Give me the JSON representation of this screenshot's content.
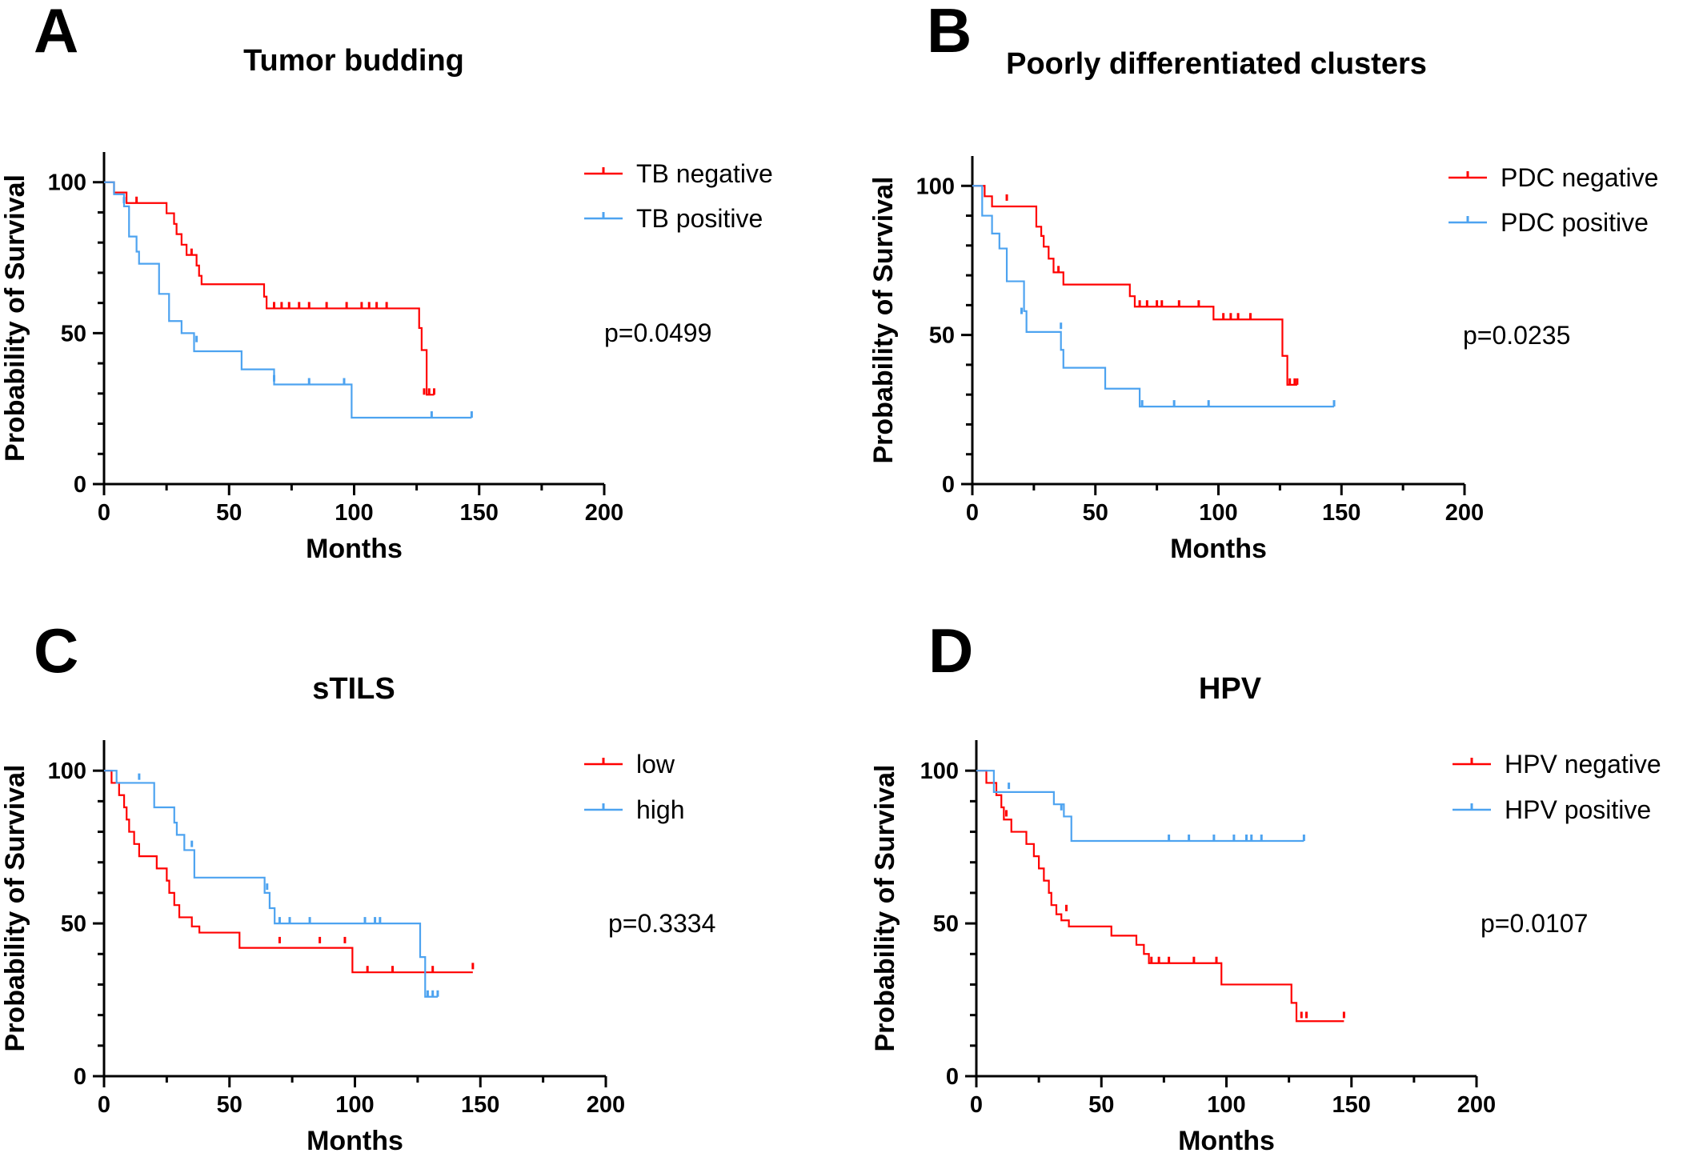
{
  "colors": {
    "red": "#ff0000",
    "blue": "#4da3f0",
    "axis": "#000000"
  },
  "chart_data": [
    {
      "panel": "A",
      "type": "line",
      "step": true,
      "title": "Tumor budding",
      "xlabel": "Months",
      "ylabel": "Probability of Survival",
      "xlim": [
        0,
        200
      ],
      "ylim": [
        0,
        110
      ],
      "xticks": [
        "0",
        "50",
        "100",
        "150",
        "200"
      ],
      "yticks": [
        "0",
        "50",
        "100"
      ],
      "p_value": "p=0.0499",
      "legend_position": "top-right",
      "series": [
        {
          "name": "TB negative",
          "color": "#ff0000",
          "steps": [
            [
              0,
              100
            ],
            [
              4,
              96.6
            ],
            [
              9,
              93.1
            ],
            [
              25,
              89.7
            ],
            [
              28,
              86.2
            ],
            [
              29,
              82.8
            ],
            [
              31,
              79.3
            ],
            [
              33,
              75.9
            ],
            [
              37,
              72.4
            ],
            [
              38,
              69
            ],
            [
              39,
              66.2
            ],
            [
              64,
              62.1
            ],
            [
              65,
              58.2
            ],
            [
              126,
              51.7
            ],
            [
              127,
              44.4
            ],
            [
              129,
              29.6
            ],
            [
              132,
              29.6
            ]
          ],
          "censored": [
            [
              13,
              93.1
            ],
            [
              35,
              75.9
            ],
            [
              68,
              58.2
            ],
            [
              71,
              58.2
            ],
            [
              74,
              58.2
            ],
            [
              78,
              58.2
            ],
            [
              82,
              58.2
            ],
            [
              89,
              58.2
            ],
            [
              97,
              58.2
            ],
            [
              103,
              58.2
            ],
            [
              106,
              58.2
            ],
            [
              109,
              58.2
            ],
            [
              113,
              58.2
            ],
            [
              128,
              29.6
            ],
            [
              130,
              29.6
            ],
            [
              132,
              29.6
            ]
          ]
        },
        {
          "name": "TB positive",
          "color": "#4da3f0",
          "steps": [
            [
              0,
              100
            ],
            [
              4,
              96
            ],
            [
              8,
              92
            ],
            [
              10,
              82
            ],
            [
              13,
              77
            ],
            [
              14,
              73
            ],
            [
              22,
              63
            ],
            [
              26,
              54
            ],
            [
              31,
              50
            ],
            [
              36,
              44
            ],
            [
              55,
              38
            ],
            [
              68,
              33
            ],
            [
              99,
              22
            ],
            [
              147,
              22
            ]
          ],
          "censored": [
            [
              8,
              93
            ],
            [
              37,
              47
            ],
            [
              68,
              34
            ],
            [
              82,
              33
            ],
            [
              96,
              33
            ],
            [
              131,
              22
            ],
            [
              147,
              22
            ]
          ]
        }
      ]
    },
    {
      "panel": "B",
      "type": "line",
      "step": true,
      "title": "Poorly differentiated clusters",
      "xlabel": "Months",
      "ylabel": "Probability of Survival",
      "xlim": [
        0,
        200
      ],
      "ylim": [
        0,
        110
      ],
      "xticks": [
        "0",
        "50",
        "100",
        "150",
        "200"
      ],
      "yticks": [
        "0",
        "50",
        "100"
      ],
      "p_value": "p=0.0235",
      "legend_position": "top-right",
      "series": [
        {
          "name": "PDC negative",
          "color": "#ff0000",
          "steps": [
            [
              0,
              100
            ],
            [
              5,
              96.5
            ],
            [
              8,
              93.1
            ],
            [
              26,
              86.3
            ],
            [
              28,
              83.2
            ],
            [
              29,
              79.6
            ],
            [
              31,
              75.6
            ],
            [
              33,
              71
            ],
            [
              37,
              66.9
            ],
            [
              64,
              63
            ],
            [
              66,
              59.5
            ],
            [
              98,
              55.2
            ],
            [
              126,
              43
            ],
            [
              128,
              33.3
            ],
            [
              132,
              33.3
            ]
          ],
          "censored": [
            [
              14,
              95
            ],
            [
              35,
              71
            ],
            [
              68,
              59.5
            ],
            [
              71,
              59.5
            ],
            [
              75,
              59.5
            ],
            [
              77,
              59.5
            ],
            [
              84,
              59.5
            ],
            [
              92,
              59.5
            ],
            [
              102,
              55.2
            ],
            [
              105,
              55.2
            ],
            [
              108,
              55.2
            ],
            [
              113,
              55.2
            ],
            [
              129,
              33.3
            ],
            [
              131,
              33.3
            ],
            [
              132,
              33.3
            ]
          ]
        },
        {
          "name": "PDC positive",
          "color": "#4da3f0",
          "steps": [
            [
              0,
              100
            ],
            [
              4,
              90
            ],
            [
              8,
              84
            ],
            [
              11,
              79
            ],
            [
              14,
              68
            ],
            [
              21,
              58
            ],
            [
              22,
              51
            ],
            [
              36,
              45
            ],
            [
              37,
              39
            ],
            [
              54,
              32
            ],
            [
              68,
              26
            ],
            [
              147,
              26
            ]
          ],
          "censored": [
            [
              20,
              57
            ],
            [
              36,
              52
            ],
            [
              69,
              26
            ],
            [
              82,
              26
            ],
            [
              96,
              26
            ],
            [
              147,
              26
            ]
          ]
        }
      ]
    },
    {
      "panel": "C",
      "type": "line",
      "step": true,
      "title": "sTILS",
      "xlabel": "Months",
      "ylabel": "Probability of Survival",
      "xlim": [
        0,
        200
      ],
      "ylim": [
        0,
        110
      ],
      "xticks": [
        "0",
        "50",
        "100",
        "150",
        "200"
      ],
      "yticks": [
        "0",
        "50",
        "100"
      ],
      "p_value": "p=0.3334",
      "legend_position": "top-right",
      "series": [
        {
          "name": "low",
          "color": "#ff0000",
          "steps": [
            [
              0,
              100
            ],
            [
              3,
              96
            ],
            [
              6,
              92
            ],
            [
              8,
              88
            ],
            [
              9,
              84
            ],
            [
              10,
              80
            ],
            [
              12,
              76
            ],
            [
              14,
              72
            ],
            [
              21,
              68
            ],
            [
              25,
              64
            ],
            [
              26,
              60
            ],
            [
              28,
              56
            ],
            [
              30,
              52
            ],
            [
              35,
              49
            ],
            [
              38,
              47
            ],
            [
              54,
              42
            ],
            [
              68,
              42
            ],
            [
              99,
              34
            ],
            [
              147,
              34
            ]
          ],
          "censored": [
            [
              70,
              43.5
            ],
            [
              86,
              43.5
            ],
            [
              96,
              43.5
            ],
            [
              105,
              34
            ],
            [
              115,
              34
            ],
            [
              131,
              34
            ],
            [
              147,
              35
            ]
          ]
        },
        {
          "name": "high",
          "color": "#4da3f0",
          "steps": [
            [
              0,
              100
            ],
            [
              5,
              96
            ],
            [
              20,
              88
            ],
            [
              28,
              83
            ],
            [
              29,
              79
            ],
            [
              32,
              74
            ],
            [
              36,
              65
            ],
            [
              64,
              60
            ],
            [
              66,
              55
            ],
            [
              68,
              50
            ],
            [
              126,
              39
            ],
            [
              128,
              26
            ],
            [
              133,
              26
            ]
          ],
          "censored": [
            [
              14,
              97
            ],
            [
              35,
              75
            ],
            [
              65,
              61
            ],
            [
              70,
              50
            ],
            [
              74,
              50
            ],
            [
              82,
              50
            ],
            [
              104,
              50
            ],
            [
              108,
              50
            ],
            [
              110,
              50
            ],
            [
              129,
              26
            ],
            [
              131,
              26
            ],
            [
              133,
              26
            ]
          ]
        }
      ]
    },
    {
      "panel": "D",
      "type": "line",
      "step": true,
      "title": "HPV",
      "xlabel": "Months",
      "ylabel": "Probability of Survival",
      "xlim": [
        0,
        200
      ],
      "ylim": [
        0,
        110
      ],
      "xticks": [
        "0",
        "50",
        "100",
        "150",
        "200"
      ],
      "yticks": [
        "0",
        "50",
        "100"
      ],
      "p_value": "p=0.0107",
      "legend_position": "top-right",
      "series": [
        {
          "name": "HPV negative",
          "color": "#ff0000",
          "steps": [
            [
              0,
              100
            ],
            [
              4,
              96
            ],
            [
              8,
              92
            ],
            [
              10,
              88
            ],
            [
              11,
              84
            ],
            [
              14,
              80
            ],
            [
              20,
              76
            ],
            [
              23,
              72
            ],
            [
              25,
              68
            ],
            [
              27,
              64
            ],
            [
              29,
              60
            ],
            [
              30,
              56
            ],
            [
              32,
              53
            ],
            [
              34,
              51
            ],
            [
              37,
              49
            ],
            [
              54,
              46
            ],
            [
              64,
              43
            ],
            [
              67,
              40
            ],
            [
              69,
              37
            ],
            [
              98,
              30
            ],
            [
              126,
              24
            ],
            [
              128,
              18
            ],
            [
              147,
              18
            ]
          ],
          "censored": [
            [
              12,
              85
            ],
            [
              36,
              54
            ],
            [
              70,
              37
            ],
            [
              73,
              37
            ],
            [
              77,
              37
            ],
            [
              87,
              37
            ],
            [
              96,
              37
            ],
            [
              130,
              19
            ],
            [
              132,
              19
            ],
            [
              147,
              19
            ]
          ]
        },
        {
          "name": "HPV positive",
          "color": "#4da3f0",
          "steps": [
            [
              0,
              100
            ],
            [
              7,
              93
            ],
            [
              31,
              89
            ],
            [
              35,
              85
            ],
            [
              38,
              77
            ],
            [
              131,
              77
            ]
          ],
          "censored": [
            [
              13,
              94
            ],
            [
              34,
              87
            ],
            [
              77,
              77
            ],
            [
              85,
              77
            ],
            [
              95,
              77
            ],
            [
              103,
              77
            ],
            [
              108,
              77
            ],
            [
              110,
              77
            ],
            [
              114,
              77
            ],
            [
              131,
              77
            ]
          ]
        }
      ]
    }
  ]
}
